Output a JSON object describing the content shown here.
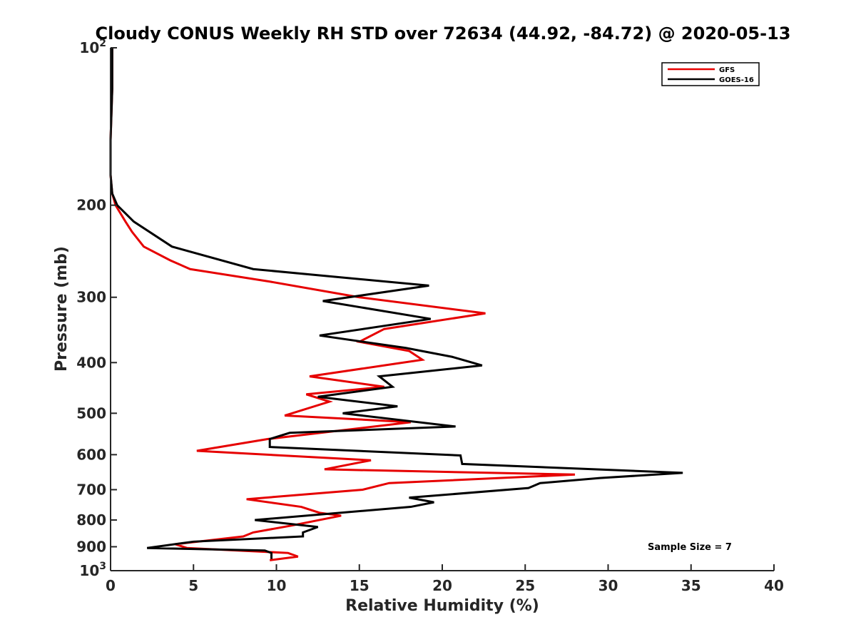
{
  "chart_data": {
    "type": "line",
    "title": "Cloudy CONUS Weekly RH STD over 72634 (44.92, -84.72) @ 2020-05-13",
    "xlabel": "Relative Humidity (%)",
    "ylabel": "Pressure (mb)",
    "xlim": [
      0,
      40
    ],
    "ylim": [
      100,
      1000
    ],
    "yscale": "log",
    "y_reversed": true,
    "grid": false,
    "legend_position": "top-right",
    "x_ticks": [
      0,
      5,
      10,
      15,
      20,
      25,
      30,
      35,
      40
    ],
    "x_tick_labels": [
      "0",
      "5",
      "10",
      "15",
      "20",
      "25",
      "30",
      "35",
      "40"
    ],
    "y_ticks": [
      100,
      200,
      300,
      400,
      500,
      600,
      700,
      800,
      900,
      1000
    ],
    "y_tick_labels": [
      {
        "base": "10",
        "exp": "2"
      },
      {
        "base": "200",
        "exp": ""
      },
      {
        "base": "300",
        "exp": ""
      },
      {
        "base": "400",
        "exp": ""
      },
      {
        "base": "500",
        "exp": ""
      },
      {
        "base": "600",
        "exp": ""
      },
      {
        "base": "700",
        "exp": ""
      },
      {
        "base": "800",
        "exp": ""
      },
      {
        "base": "900",
        "exp": ""
      },
      {
        "base": "10",
        "exp": "3"
      }
    ],
    "annotation": "Sample Size = 7",
    "series": [
      {
        "name": "GFS",
        "color": "#e60000",
        "points": [
          [
            0.1,
            100
          ],
          [
            0.1,
            120
          ],
          [
            0.0,
            150
          ],
          [
            0.0,
            175
          ],
          [
            0.1,
            190
          ],
          [
            0.3,
            200
          ],
          [
            0.9,
            215
          ],
          [
            1.3,
            225
          ],
          [
            2.0,
            240
          ],
          [
            3.6,
            255
          ],
          [
            4.8,
            265
          ],
          [
            9.6,
            280
          ],
          [
            15.0,
            300
          ],
          [
            22.6,
            322
          ],
          [
            16.5,
            345
          ],
          [
            15.0,
            365
          ],
          [
            18.0,
            380
          ],
          [
            18.8,
            395
          ],
          [
            12.0,
            425
          ],
          [
            16.5,
            445
          ],
          [
            11.8,
            460
          ],
          [
            13.2,
            475
          ],
          [
            10.5,
            505
          ],
          [
            18.1,
            520
          ],
          [
            9.5,
            560
          ],
          [
            5.2,
            590
          ],
          [
            15.7,
            615
          ],
          [
            12.9,
            640
          ],
          [
            28.0,
            655
          ],
          [
            16.8,
            680
          ],
          [
            15.2,
            700
          ],
          [
            8.2,
            730
          ],
          [
            11.5,
            755
          ],
          [
            12.6,
            775
          ],
          [
            13.9,
            785
          ],
          [
            10.9,
            820
          ],
          [
            8.6,
            845
          ],
          [
            8.0,
            860
          ],
          [
            3.9,
            890
          ],
          [
            4.6,
            905
          ],
          [
            10.7,
            925
          ],
          [
            11.3,
            940
          ],
          [
            9.6,
            955
          ]
        ]
      },
      {
        "name": "GOES-16",
        "color": "#000000",
        "points": [
          [
            0.1,
            100
          ],
          [
            0.1,
            120
          ],
          [
            0.0,
            150
          ],
          [
            0.0,
            175
          ],
          [
            0.1,
            190
          ],
          [
            0.4,
            200
          ],
          [
            1.4,
            215
          ],
          [
            3.7,
            240
          ],
          [
            8.6,
            265
          ],
          [
            19.2,
            285
          ],
          [
            12.8,
            305
          ],
          [
            19.3,
            330
          ],
          [
            12.6,
            355
          ],
          [
            17.8,
            375
          ],
          [
            20.6,
            390
          ],
          [
            22.4,
            405
          ],
          [
            16.2,
            425
          ],
          [
            17.0,
            445
          ],
          [
            12.5,
            465
          ],
          [
            17.3,
            485
          ],
          [
            14.0,
            500
          ],
          [
            20.8,
            530
          ],
          [
            10.8,
            545
          ],
          [
            9.6,
            560
          ],
          [
            9.6,
            580
          ],
          [
            21.1,
            602
          ],
          [
            21.2,
            625
          ],
          [
            34.5,
            650
          ],
          [
            29.5,
            665
          ],
          [
            25.9,
            680
          ],
          [
            25.2,
            695
          ],
          [
            18.0,
            725
          ],
          [
            19.5,
            740
          ],
          [
            18.1,
            755
          ],
          [
            8.7,
            800
          ],
          [
            12.5,
            825
          ],
          [
            11.6,
            845
          ],
          [
            11.6,
            860
          ],
          [
            5.0,
            880
          ],
          [
            2.2,
            905
          ],
          [
            9.3,
            915
          ],
          [
            9.7,
            925
          ],
          [
            9.7,
            950
          ]
        ]
      }
    ]
  }
}
